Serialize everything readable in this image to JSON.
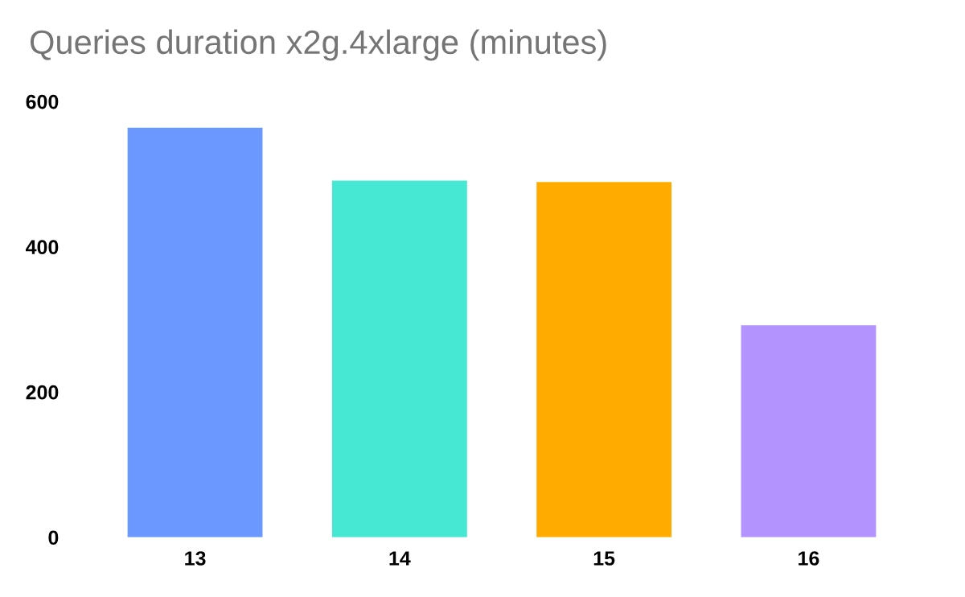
{
  "chart_data": {
    "type": "bar",
    "title": "Queries duration x2g.4xlarge (minutes)",
    "categories": [
      "13",
      "14",
      "15",
      "16"
    ],
    "values": [
      564,
      491,
      489,
      292
    ],
    "colors": [
      "#6b98ff",
      "#46e7d3",
      "#ffab00",
      "#b394ff"
    ],
    "ylim": [
      0,
      600
    ],
    "yticks": [
      0,
      200,
      400,
      600
    ],
    "grid": false,
    "legend": false
  }
}
